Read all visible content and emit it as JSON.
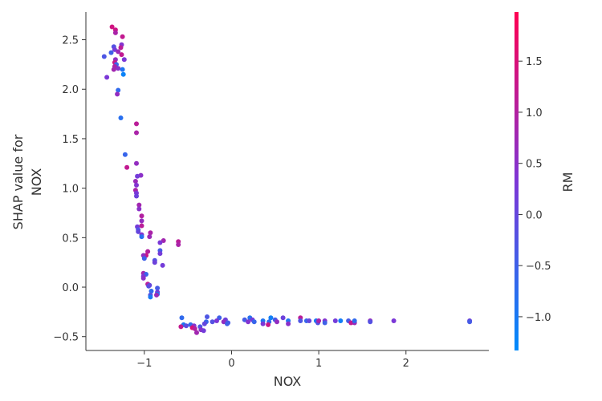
{
  "chart_data": {
    "type": "scatter",
    "title": "",
    "xlabel": "NOX",
    "ylabel_lines": [
      "SHAP value for",
      "NOX"
    ],
    "xlim": [
      -1.67,
      2.95
    ],
    "ylim": [
      -0.64,
      2.78
    ],
    "xticks": [
      -1,
      0,
      1,
      2
    ],
    "xtick_labels": [
      "−1",
      "0",
      "1",
      "2"
    ],
    "yticks": [
      -0.5,
      0.0,
      0.5,
      1.0,
      1.5,
      2.0,
      2.5
    ],
    "ytick_labels": [
      "−0.5",
      "0.0",
      "0.5",
      "1.0",
      "1.5",
      "2.0",
      "2.5"
    ],
    "grid": false,
    "colorbar": {
      "label": "RM",
      "range": [
        -1.33,
        1.98
      ],
      "ticks": [
        -1.0,
        -0.5,
        0.0,
        0.5,
        1.0,
        1.5
      ],
      "tick_labels": [
        "−1.0",
        "−0.5",
        "0.0",
        "0.5",
        "1.0",
        "1.5"
      ],
      "colors": [
        "#008afb",
        "#7d36d6",
        "#ff0051"
      ]
    },
    "points": [
      {
        "x": -1.37,
        "y": 2.63,
        "c": 1.4
      },
      {
        "x": -1.33,
        "y": 2.6,
        "c": 1.3
      },
      {
        "x": -1.33,
        "y": 2.57,
        "c": 0.9
      },
      {
        "x": -1.25,
        "y": 2.53,
        "c": 1.2
      },
      {
        "x": -1.26,
        "y": 2.45,
        "c": 0.4
      },
      {
        "x": -1.35,
        "y": 2.43,
        "c": -0.2
      },
      {
        "x": -1.27,
        "y": 2.42,
        "c": 1.1
      },
      {
        "x": -1.34,
        "y": 2.4,
        "c": 0.2
      },
      {
        "x": -1.38,
        "y": 2.37,
        "c": -0.5
      },
      {
        "x": -1.3,
        "y": 2.38,
        "c": 0.7
      },
      {
        "x": -1.46,
        "y": 2.33,
        "c": -0.3
      },
      {
        "x": -1.26,
        "y": 2.35,
        "c": 1.2
      },
      {
        "x": -1.33,
        "y": 2.3,
        "c": 0.6
      },
      {
        "x": -1.23,
        "y": 2.3,
        "c": 0.3
      },
      {
        "x": -1.34,
        "y": 2.27,
        "c": 1.3
      },
      {
        "x": -1.32,
        "y": 2.25,
        "c": -0.6
      },
      {
        "x": -1.34,
        "y": 2.23,
        "c": 0.9
      },
      {
        "x": -1.3,
        "y": 2.21,
        "c": 0.5
      },
      {
        "x": -1.35,
        "y": 2.2,
        "c": 0.8
      },
      {
        "x": -1.25,
        "y": 2.2,
        "c": -0.9
      },
      {
        "x": -1.24,
        "y": 2.15,
        "c": -1.2
      },
      {
        "x": -1.43,
        "y": 2.12,
        "c": 0.3
      },
      {
        "x": -1.3,
        "y": 1.99,
        "c": -0.7
      },
      {
        "x": -1.31,
        "y": 1.95,
        "c": 0.6
      },
      {
        "x": -1.27,
        "y": 1.71,
        "c": -0.8
      },
      {
        "x": -1.09,
        "y": 1.65,
        "c": 1.1
      },
      {
        "x": -1.09,
        "y": 1.56,
        "c": 0.9
      },
      {
        "x": -1.22,
        "y": 1.34,
        "c": -0.6
      },
      {
        "x": -1.09,
        "y": 1.25,
        "c": 0.6
      },
      {
        "x": -1.2,
        "y": 1.21,
        "c": 1.2
      },
      {
        "x": -1.04,
        "y": 1.13,
        "c": 0.5
      },
      {
        "x": -1.08,
        "y": 1.12,
        "c": 0.2
      },
      {
        "x": -1.1,
        "y": 1.07,
        "c": 0.7
      },
      {
        "x": -1.09,
        "y": 1.03,
        "c": 0.4
      },
      {
        "x": -1.1,
        "y": 0.98,
        "c": 0.9
      },
      {
        "x": -1.09,
        "y": 0.95,
        "c": 0.3
      },
      {
        "x": -1.09,
        "y": 0.92,
        "c": 0.1
      },
      {
        "x": -1.06,
        "y": 0.83,
        "c": 0.8
      },
      {
        "x": -1.06,
        "y": 0.79,
        "c": 0.5
      },
      {
        "x": -1.03,
        "y": 0.72,
        "c": 1.0
      },
      {
        "x": -1.03,
        "y": 0.67,
        "c": 0.6
      },
      {
        "x": -1.03,
        "y": 0.62,
        "c": 1.1
      },
      {
        "x": -1.08,
        "y": 0.61,
        "c": 0.2
      },
      {
        "x": -1.07,
        "y": 0.58,
        "c": -0.3
      },
      {
        "x": -1.07,
        "y": 0.56,
        "c": 0.0
      },
      {
        "x": -0.93,
        "y": 0.55,
        "c": 0.9
      },
      {
        "x": -1.03,
        "y": 0.53,
        "c": 0.4
      },
      {
        "x": -1.03,
        "y": 0.51,
        "c": -0.8
      },
      {
        "x": -0.94,
        "y": 0.51,
        "c": 0.7
      },
      {
        "x": -0.78,
        "y": 0.47,
        "c": 0.8
      },
      {
        "x": -0.61,
        "y": 0.46,
        "c": 1.1
      },
      {
        "x": -0.82,
        "y": 0.45,
        "c": 0.3
      },
      {
        "x": -0.61,
        "y": 0.43,
        "c": 0.9
      },
      {
        "x": -0.82,
        "y": 0.37,
        "c": -0.4
      },
      {
        "x": -0.96,
        "y": 0.36,
        "c": 1.0
      },
      {
        "x": -0.82,
        "y": 0.34,
        "c": 0.2
      },
      {
        "x": -0.98,
        "y": 0.32,
        "c": 1.3
      },
      {
        "x": -1.01,
        "y": 0.32,
        "c": 0.6
      },
      {
        "x": -1.0,
        "y": 0.29,
        "c": -0.5
      },
      {
        "x": -0.88,
        "y": 0.27,
        "c": -0.2
      },
      {
        "x": -0.88,
        "y": 0.25,
        "c": 0.1
      },
      {
        "x": -0.79,
        "y": 0.22,
        "c": 0.2
      },
      {
        "x": -1.01,
        "y": 0.14,
        "c": 0.8
      },
      {
        "x": -0.98,
        "y": 0.13,
        "c": -0.6
      },
      {
        "x": -1.01,
        "y": 0.11,
        "c": 0.3
      },
      {
        "x": -1.01,
        "y": 0.09,
        "c": 0.5
      },
      {
        "x": -0.96,
        "y": 0.03,
        "c": 1.1
      },
      {
        "x": -0.95,
        "y": 0.01,
        "c": -0.3
      },
      {
        "x": -0.94,
        "y": 0.02,
        "c": 0.0
      },
      {
        "x": -0.85,
        "y": -0.01,
        "c": -0.4
      },
      {
        "x": -0.92,
        "y": -0.04,
        "c": -0.7
      },
      {
        "x": -0.85,
        "y": -0.05,
        "c": 0.2
      },
      {
        "x": -0.85,
        "y": -0.07,
        "c": -0.8
      },
      {
        "x": -0.86,
        "y": -0.08,
        "c": 0.7
      },
      {
        "x": -0.93,
        "y": -0.08,
        "c": -0.2
      },
      {
        "x": -0.93,
        "y": -0.1,
        "c": -1.0
      },
      {
        "x": -0.57,
        "y": -0.31,
        "c": -0.7
      },
      {
        "x": -0.28,
        "y": -0.3,
        "c": -0.3
      },
      {
        "x": -0.14,
        "y": -0.31,
        "c": -0.5
      },
      {
        "x": -0.07,
        "y": -0.33,
        "c": 0.1
      },
      {
        "x": -0.09,
        "y": -0.35,
        "c": 0.6
      },
      {
        "x": -0.04,
        "y": -0.36,
        "c": -0.4
      },
      {
        "x": -0.22,
        "y": -0.35,
        "c": -0.2
      },
      {
        "x": -0.17,
        "y": -0.34,
        "c": 0.3
      },
      {
        "x": -0.29,
        "y": -0.35,
        "c": -0.6
      },
      {
        "x": -0.31,
        "y": -0.37,
        "c": 0.0
      },
      {
        "x": -0.55,
        "y": -0.38,
        "c": -0.9
      },
      {
        "x": -0.52,
        "y": -0.39,
        "c": -0.1
      },
      {
        "x": -0.47,
        "y": -0.38,
        "c": -0.7
      },
      {
        "x": -0.43,
        "y": -0.39,
        "c": 0.4
      },
      {
        "x": -0.58,
        "y": -0.4,
        "c": 1.2
      },
      {
        "x": -0.45,
        "y": -0.41,
        "c": 1.5
      },
      {
        "x": -0.42,
        "y": -0.42,
        "c": 1.0
      },
      {
        "x": -0.36,
        "y": -0.4,
        "c": -0.3
      },
      {
        "x": -0.35,
        "y": -0.43,
        "c": 0.5
      },
      {
        "x": -0.4,
        "y": -0.46,
        "c": 0.8
      },
      {
        "x": -0.32,
        "y": -0.44,
        "c": 0.2
      },
      {
        "x": -0.05,
        "y": -0.37,
        "c": -0.5
      },
      {
        "x": 0.15,
        "y": -0.33,
        "c": -0.4
      },
      {
        "x": 0.21,
        "y": -0.31,
        "c": -0.8
      },
      {
        "x": 0.24,
        "y": -0.33,
        "c": 0.2
      },
      {
        "x": 0.19,
        "y": -0.35,
        "c": 0.4
      },
      {
        "x": 0.26,
        "y": -0.35,
        "c": -0.6
      },
      {
        "x": 0.36,
        "y": -0.34,
        "c": -0.9
      },
      {
        "x": 0.36,
        "y": -0.37,
        "c": 0.3
      },
      {
        "x": 0.43,
        "y": -0.35,
        "c": -0.7
      },
      {
        "x": 0.42,
        "y": -0.38,
        "c": 1.3
      },
      {
        "x": 0.45,
        "y": -0.31,
        "c": -1.1
      },
      {
        "x": 0.5,
        "y": -0.33,
        "c": -0.4
      },
      {
        "x": 0.52,
        "y": -0.35,
        "c": 0.6
      },
      {
        "x": 0.59,
        "y": -0.31,
        "c": 0.1
      },
      {
        "x": 0.65,
        "y": -0.34,
        "c": -0.9
      },
      {
        "x": 0.65,
        "y": -0.37,
        "c": 0.5
      },
      {
        "x": 0.79,
        "y": -0.31,
        "c": 1.1
      },
      {
        "x": 0.79,
        "y": -0.34,
        "c": -0.3
      },
      {
        "x": 0.86,
        "y": -0.34,
        "c": -0.6
      },
      {
        "x": 0.89,
        "y": -0.34,
        "c": 0.0
      },
      {
        "x": 0.97,
        "y": -0.34,
        "c": -1.0
      },
      {
        "x": 0.99,
        "y": -0.36,
        "c": -0.2
      },
      {
        "x": 1.0,
        "y": -0.34,
        "c": 0.9
      },
      {
        "x": 1.07,
        "y": -0.34,
        "c": 0.4
      },
      {
        "x": 1.07,
        "y": -0.36,
        "c": -0.5
      },
      {
        "x": 1.19,
        "y": -0.34,
        "c": 0.2
      },
      {
        "x": 1.25,
        "y": -0.34,
        "c": -1.1
      },
      {
        "x": 1.34,
        "y": -0.34,
        "c": -0.4
      },
      {
        "x": 1.37,
        "y": -0.36,
        "c": 1.2
      },
      {
        "x": 1.41,
        "y": -0.36,
        "c": 0.7
      },
      {
        "x": 1.41,
        "y": -0.34,
        "c": -0.7
      },
      {
        "x": 1.59,
        "y": -0.34,
        "c": 0.6
      },
      {
        "x": 1.59,
        "y": -0.35,
        "c": -0.2
      },
      {
        "x": 1.86,
        "y": -0.34,
        "c": 0.3
      },
      {
        "x": 2.73,
        "y": -0.34,
        "c": 0.1
      },
      {
        "x": 2.73,
        "y": -0.35,
        "c": -0.4
      }
    ]
  }
}
